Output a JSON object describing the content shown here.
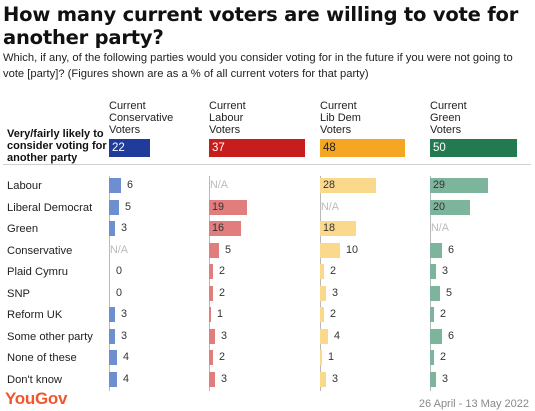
{
  "title": "How many current voters are willing to vote for another party?",
  "subtitle": "Which, if any, of the following parties would you consider voting for in the future if you were not going to vote [party]? (Figures shown are as a % of all current voters for that party)",
  "footer": {
    "brand": "YouGov",
    "date_range": "26 April - 13 May 2022"
  },
  "chart_data": {
    "type": "bar",
    "title": "How many current voters are willing to vote for another party?",
    "highlight_row": {
      "label": "Very/fairly likely to consider voting for another party",
      "values": [
        22,
        37,
        48,
        50
      ]
    },
    "categories": [
      "Labour",
      "Liberal Democrat",
      "Green",
      "Conservative",
      "Plaid Cymru",
      "SNP",
      "Reform UK",
      "Some other party",
      "None of these",
      "Don't know"
    ],
    "series": [
      {
        "name": "Current Conservative Voters",
        "header_lines": [
          "Current",
          "Conservative",
          "Voters"
        ],
        "color": "#1f3b9b",
        "bar_color": "#6d8fd0",
        "values": [
          6,
          5,
          3,
          null,
          0,
          0,
          3,
          3,
          4,
          4
        ]
      },
      {
        "name": "Current Labour Voters",
        "header_lines": [
          "Current",
          "Labour",
          "Voters"
        ],
        "color": "#c81d1d",
        "bar_color": "#e27d7d",
        "values": [
          null,
          19,
          16,
          5,
          2,
          2,
          1,
          3,
          2,
          3
        ]
      },
      {
        "name": "Current Lib Dem Voters",
        "header_lines": [
          "Current",
          "Lib Dem",
          "Voters"
        ],
        "color": "#f5a623",
        "bar_color": "#fad98c",
        "values": [
          28,
          null,
          18,
          10,
          2,
          3,
          2,
          4,
          1,
          3
        ]
      },
      {
        "name": "Current Green Voters",
        "header_lines": [
          "Current",
          "Green",
          "Voters"
        ],
        "color": "#237a50",
        "bar_color": "#7db49c",
        "values": [
          29,
          20,
          null,
          6,
          3,
          5,
          2,
          6,
          2,
          3
        ]
      }
    ],
    "na_label": "N/A",
    "grid": false
  }
}
